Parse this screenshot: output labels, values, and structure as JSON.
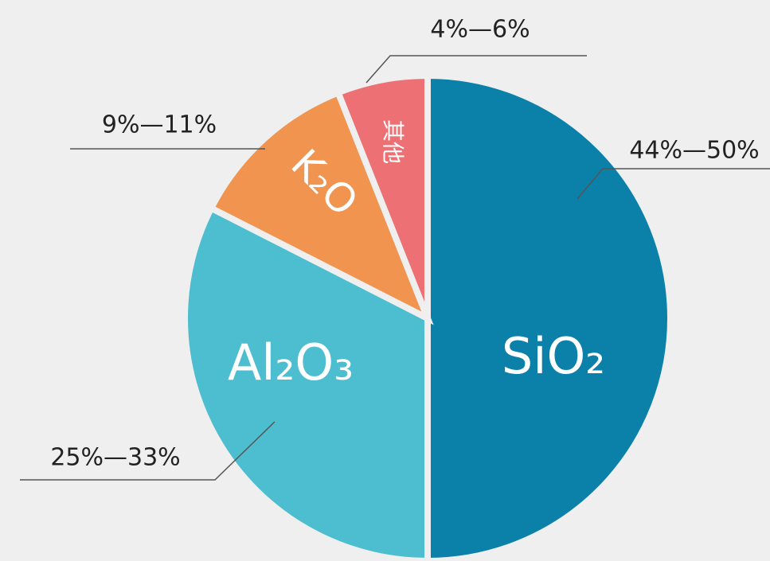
{
  "chart_data": {
    "type": "pie",
    "categories": [
      "SiO₂",
      "Al₂O₃",
      "K₂O",
      "其他"
    ],
    "values": [
      50,
      32.5,
      11.5,
      6
    ],
    "colors": [
      "#0b80a9",
      "#4dbdd0",
      "#f1944f",
      "#ec7074"
    ],
    "annotations": [
      "44%—50%",
      "25%—33%",
      "9%—11%",
      "4%—6%"
    ]
  }
}
